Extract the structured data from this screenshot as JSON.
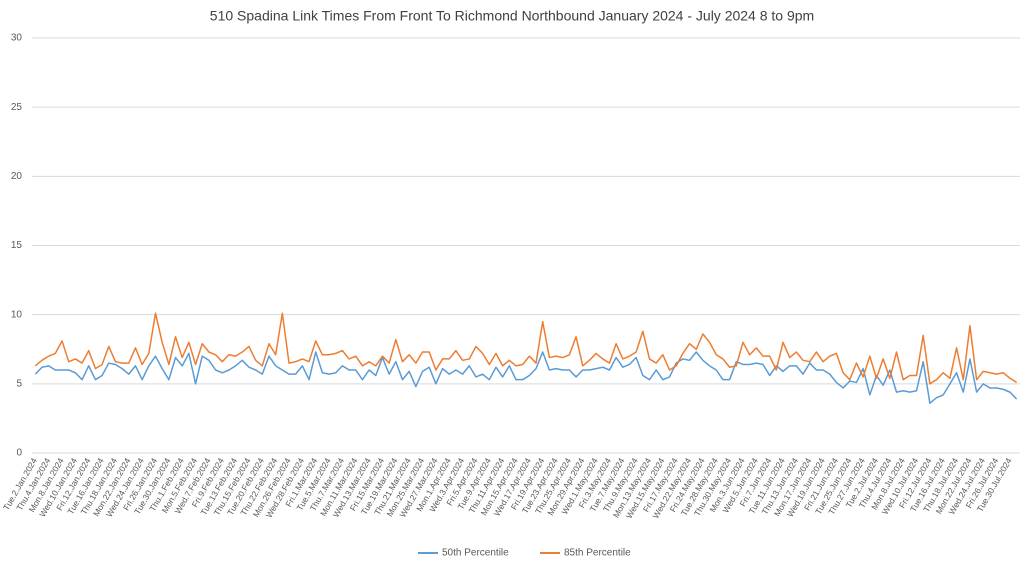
{
  "chart_data": {
    "type": "line",
    "title": "510 Spadina Link Times From Front To Richmond Northbound January 2024 - July 2024 8 to 9pm",
    "categories": [
      "Tue.2.Jan.2024",
      null,
      "Thu.4.Jan.2024",
      null,
      "Mon.8.Jan.2024",
      null,
      "Wed.10.Jan.2024",
      null,
      "Fri.12.Jan.2024",
      null,
      "Tue.16.Jan.2024",
      null,
      "Thu.18.Jan.2024",
      null,
      "Mon.22.Jan.2024",
      null,
      "Wed.24.Jan.2024",
      null,
      "Fri.26.Jan.2024",
      null,
      "Tue.30.Jan.2024",
      null,
      "Thu.1.Feb.2024",
      null,
      "Mon.5.Feb.2024",
      null,
      "Wed.7.Feb.2024",
      null,
      "Fri.9.Feb.2024",
      null,
      "Tue.13.Feb.2024",
      null,
      "Thu.15.Feb.2024",
      null,
      "Tue.20.Feb.2024",
      null,
      "Thu.22.Feb.2024",
      null,
      "Mon.26.Feb.2024",
      null,
      "Wed.28.Feb.2024",
      null,
      "Fri.1.Mar.2024",
      null,
      "Tue.5.Mar.2024",
      null,
      "Thu.7.Mar.2024",
      null,
      "Mon.11.Mar.2024",
      null,
      "Wed.13.Mar.2024",
      null,
      "Fri.15.Mar.2024",
      null,
      "Tue.19.Mar.2024",
      null,
      "Thu.21.Mar.2024",
      null,
      "Mon.25.Mar.2024",
      null,
      "Wed.27.Mar.2024",
      null,
      "Mon.1.Apr.2024",
      null,
      "Wed.3.Apr.2024",
      null,
      "Fri.5.Apr.2024",
      null,
      "Tue.9.Apr.2024",
      null,
      "Thu.11.Apr.2024",
      null,
      "Mon.15.Apr.2024",
      null,
      "Wed.17.Apr.2024",
      null,
      "Fri.19.Apr.2024",
      null,
      "Tue.23.Apr.2024",
      null,
      "Thu.25.Apr.2024",
      null,
      "Mon.29.Apr.2024",
      null,
      "Wed.1.May.2024",
      null,
      "Fri.3.May.2024",
      null,
      "Tue.7.May.2024",
      null,
      "Thu.9.May.2024",
      null,
      "Mon.13.May.2024",
      null,
      "Wed.15.May.2024",
      null,
      "Fri.17.May.2024",
      null,
      "Wed.22.May.2024",
      null,
      "Fri.24.May.2024",
      null,
      "Tue.28.May.2024",
      null,
      "Thu.30.May.2024",
      null,
      "Mon.3.Jun.2024",
      null,
      "Wed.5.Jun.2024",
      null,
      "Fri.7.Jun.2024",
      null,
      "Tue.11.Jun.2024",
      null,
      "Thu.13.Jun.2024",
      null,
      "Mon.17.Jun.2024",
      null,
      "Wed.19.Jun.2024",
      null,
      "Fri.21.Jun.2024",
      null,
      "Tue.25.Jun.2024",
      null,
      "Thu.27.Jun.2024",
      null,
      "Tue.2.Jul.2024",
      null,
      "Thu.4.Jul.2024",
      null,
      "Mon.8.Jul.2024",
      null,
      "Wed.10.Jul.2024",
      null,
      "Fri.12.Jul.2024",
      null,
      "Tue.16.Jul.2024",
      null,
      "Thu.18.Jul.2024",
      null,
      "Mon.22.Jul.2024",
      null,
      "Wed.24.Jul.2024",
      null,
      "Fri.26.Jul.2024",
      null,
      "Tue.30.Jul.2024",
      null
    ],
    "series": [
      {
        "name": "50th Percentile",
        "color": "#5b9bd5",
        "values": [
          5.7,
          6.2,
          6.3,
          6.0,
          6.0,
          6.0,
          5.8,
          5.3,
          6.3,
          5.3,
          5.6,
          6.5,
          6.4,
          6.1,
          5.7,
          6.3,
          5.3,
          6.3,
          7.0,
          6.1,
          5.3,
          6.9,
          6.3,
          7.2,
          5.0,
          7.0,
          6.7,
          6.0,
          5.8,
          6.0,
          6.3,
          6.7,
          6.2,
          6.0,
          5.7,
          7.0,
          6.3,
          6.0,
          5.7,
          5.7,
          6.3,
          5.3,
          7.3,
          5.8,
          5.7,
          5.8,
          6.3,
          6.0,
          6.0,
          5.3,
          6.0,
          5.6,
          6.9,
          5.7,
          6.6,
          5.3,
          5.9,
          4.8,
          5.9,
          6.2,
          5.0,
          6.1,
          5.7,
          6.0,
          5.7,
          6.3,
          5.5,
          5.7,
          5.3,
          6.2,
          5.5,
          6.3,
          5.3,
          5.3,
          5.6,
          6.1,
          7.3,
          6.0,
          6.1,
          6.0,
          6.0,
          5.5,
          6.0,
          6.0,
          6.1,
          6.2,
          6.0,
          6.9,
          6.2,
          6.4,
          6.9,
          5.6,
          5.3,
          6.0,
          5.3,
          5.5,
          6.5,
          6.8,
          6.7,
          7.3,
          6.7,
          6.3,
          6.0,
          5.3,
          5.3,
          6.6,
          6.4,
          6.4,
          6.5,
          6.4,
          5.6,
          6.3,
          5.9,
          6.3,
          6.3,
          5.7,
          6.5,
          6.0,
          6.0,
          5.7,
          5.1,
          4.7,
          5.2,
          5.1,
          6.1,
          4.2,
          5.6,
          4.9,
          6.0,
          4.4,
          4.5,
          4.4,
          4.5,
          6.6,
          3.6,
          4.0,
          4.2,
          5.0,
          5.8,
          4.4,
          6.8,
          4.4,
          5.0,
          4.7,
          4.7,
          4.6,
          4.4,
          3.9
        ]
      },
      {
        "name": "85th Percentile",
        "color": "#ed7d31",
        "values": [
          6.3,
          6.7,
          7.0,
          7.2,
          8.1,
          6.6,
          6.8,
          6.5,
          7.4,
          6.1,
          6.4,
          7.7,
          6.6,
          6.5,
          6.5,
          7.6,
          6.4,
          7.2,
          10.1,
          8.0,
          6.4,
          8.4,
          6.9,
          8.0,
          6.4,
          7.9,
          7.3,
          7.1,
          6.6,
          7.1,
          7.0,
          7.3,
          7.7,
          6.7,
          6.3,
          7.9,
          7.1,
          10.1,
          6.5,
          6.6,
          6.8,
          6.6,
          8.1,
          7.1,
          7.1,
          7.2,
          7.4,
          6.8,
          7.0,
          6.3,
          6.6,
          6.3,
          7.0,
          6.5,
          8.2,
          6.6,
          7.1,
          6.5,
          7.3,
          7.3,
          6.0,
          6.8,
          6.8,
          7.4,
          6.7,
          6.8,
          7.7,
          7.2,
          6.4,
          7.2,
          6.3,
          6.7,
          6.3,
          6.4,
          7.0,
          6.5,
          9.5,
          6.9,
          7.0,
          6.9,
          7.1,
          8.4,
          6.3,
          6.7,
          7.2,
          6.8,
          6.5,
          7.9,
          6.8,
          7.0,
          7.3,
          8.8,
          6.8,
          6.5,
          7.1,
          6.0,
          6.3,
          7.2,
          7.9,
          7.5,
          8.6,
          8.0,
          7.1,
          6.8,
          6.2,
          6.3,
          8.0,
          7.1,
          7.6,
          7.0,
          7.0,
          6.0,
          8.0,
          6.9,
          7.3,
          6.7,
          6.6,
          7.3,
          6.6,
          7.0,
          7.2,
          5.8,
          5.3,
          6.5,
          5.5,
          7.0,
          5.4,
          6.8,
          5.4,
          7.3,
          5.3,
          5.6,
          5.6,
          8.5,
          5.0,
          5.3,
          5.8,
          5.4,
          7.6,
          5.3,
          9.2,
          5.3,
          5.9,
          5.8,
          5.7,
          5.8,
          5.4,
          5.1
        ]
      }
    ],
    "ylim": [
      0,
      30
    ],
    "yticks": [
      0,
      5,
      10,
      15,
      20,
      25,
      30
    ],
    "grid": true,
    "legend": "bottom"
  }
}
